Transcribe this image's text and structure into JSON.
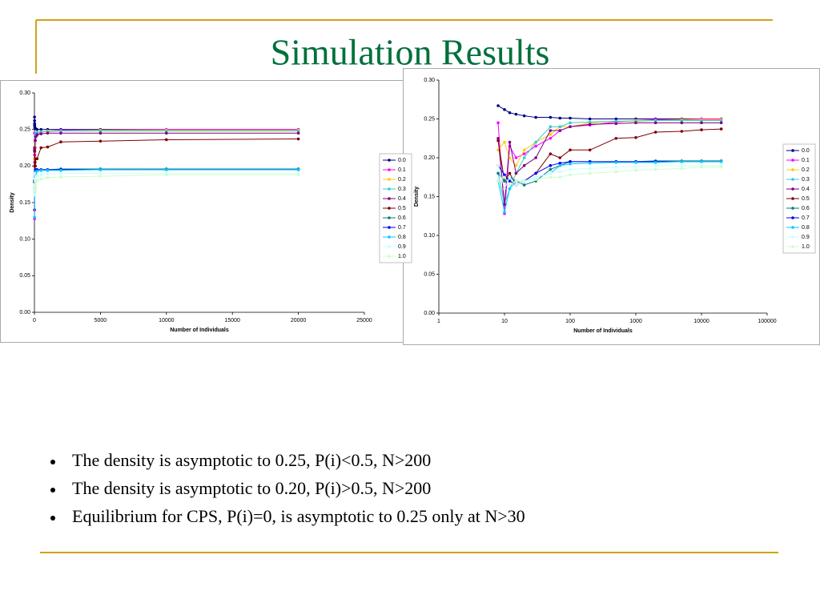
{
  "title": "Simulation Results",
  "bullets": [
    "The density is asymptotic to 0.25, P(i)<0.5, N>200",
    "The density is asymptotic to 0.20, P(i)>0.5, N>200",
    "Equilibrium for CPS, P(i)=0, is asymptotic to 0.25 only at N>30"
  ],
  "chart_data": [
    {
      "type": "line",
      "x_label": "Number of Individuals",
      "y_label": "Density",
      "xlog": false,
      "x": [
        8,
        10,
        12,
        15,
        20,
        30,
        50,
        70,
        100,
        200,
        500,
        1000,
        2000,
        5000,
        10000,
        20000
      ],
      "xlim": [
        0,
        25000
      ],
      "xticks": [
        0,
        5000,
        10000,
        15000,
        20000,
        25000
      ],
      "ylim": [
        0,
        0.3
      ],
      "yticks": [
        {
          "value": 0,
          "label": "0.00"
        },
        0.05,
        {
          "value": 0.1,
          "label": "0.10"
        },
        0.15,
        {
          "value": 0.2,
          "label": "0.20"
        },
        0.25,
        {
          "value": 0.3,
          "label": "0.30"
        }
      ],
      "series": [
        {
          "name": "0.0",
          "color": "#000080",
          "values": [
            0.267,
            0.262,
            0.258,
            0.256,
            0.254,
            0.252,
            0.252,
            0.251,
            0.251,
            0.25,
            0.25,
            0.25,
            0.25,
            0.25,
            0.25,
            0.25
          ]
        },
        {
          "name": "0.1",
          "color": "#ff00ff",
          "values": [
            0.245,
            0.128,
            0.215,
            0.2,
            0.205,
            0.215,
            0.225,
            0.235,
            0.24,
            0.242,
            0.246,
            0.248,
            0.249,
            0.249,
            0.25,
            0.25
          ]
        },
        {
          "name": "0.2",
          "color": "#ffcc00",
          "values": [
            0.21,
            0.22,
            0.2,
            0.19,
            0.21,
            0.22,
            0.23,
            0.24,
            0.24,
            0.245,
            0.247,
            0.248,
            0.248,
            0.249,
            0.249,
            0.249
          ]
        },
        {
          "name": "0.3",
          "color": "#33cccc",
          "values": [
            0.18,
            0.14,
            0.16,
            0.18,
            0.2,
            0.22,
            0.24,
            0.24,
            0.245,
            0.246,
            0.247,
            0.247,
            0.248,
            0.248,
            0.248,
            0.248
          ]
        },
        {
          "name": "0.4",
          "color": "#800080",
          "values": [
            0.225,
            0.14,
            0.22,
            0.18,
            0.19,
            0.2,
            0.235,
            0.235,
            0.24,
            0.243,
            0.244,
            0.245,
            0.245,
            0.245,
            0.245,
            0.245
          ]
        },
        {
          "name": "0.5",
          "color": "#800000",
          "values": [
            0.222,
            0.17,
            0.18,
            0.165,
            0.17,
            0.18,
            0.205,
            0.2,
            0.21,
            0.21,
            0.225,
            0.226,
            0.233,
            0.234,
            0.236,
            0.237
          ]
        },
        {
          "name": "0.6",
          "color": "#008080",
          "values": [
            0.18,
            0.17,
            0.175,
            0.17,
            0.165,
            0.17,
            0.185,
            0.19,
            0.195,
            0.195,
            0.195,
            0.195,
            0.196,
            0.196,
            0.196,
            0.196
          ]
        },
        {
          "name": "0.7",
          "color": "#0000ff",
          "values": [
            0.19,
            0.178,
            0.17,
            0.165,
            0.17,
            0.18,
            0.19,
            0.193,
            0.195,
            0.195,
            0.195,
            0.195,
            0.195,
            0.195,
            0.195,
            0.195
          ]
        },
        {
          "name": "0.8",
          "color": "#00ccff",
          "values": [
            0.17,
            0.13,
            0.16,
            0.17,
            0.17,
            0.175,
            0.18,
            0.19,
            0.192,
            0.193,
            0.194,
            0.194,
            0.194,
            0.195,
            0.195,
            0.195
          ]
        },
        {
          "name": "0.9",
          "color": "#ccffff",
          "values": [
            0.19,
            0.16,
            0.175,
            0.165,
            0.17,
            0.175,
            0.18,
            0.182,
            0.185,
            0.186,
            0.188,
            0.189,
            0.19,
            0.19,
            0.19,
            0.19
          ]
        },
        {
          "name": "1.0",
          "color": "#ccffcc",
          "values": [
            0.17,
            0.175,
            0.165,
            0.17,
            0.17,
            0.172,
            0.175,
            0.175,
            0.178,
            0.18,
            0.182,
            0.184,
            0.185,
            0.186,
            0.188,
            0.188
          ]
        }
      ]
    },
    {
      "type": "line",
      "x_label": "Number of Individuals",
      "y_label": "Density",
      "xlog": true,
      "x": [
        8,
        10,
        12,
        15,
        20,
        30,
        50,
        70,
        100,
        200,
        500,
        1000,
        2000,
        5000,
        10000,
        20000
      ],
      "xlim": [
        1,
        100000
      ],
      "xticks": [
        1,
        10,
        100,
        1000,
        10000,
        100000
      ],
      "ylim": [
        0,
        0.3
      ],
      "yticks": [
        {
          "value": 0,
          "label": "0.00"
        },
        0.05,
        {
          "value": 0.1,
          "label": "0.10"
        },
        0.15,
        {
          "value": 0.2,
          "label": "0.20"
        },
        0.25,
        {
          "value": 0.3,
          "label": "0.30"
        }
      ],
      "series": [
        {
          "name": "0.0",
          "color": "#000080",
          "values": [
            0.267,
            0.262,
            0.258,
            0.256,
            0.254,
            0.252,
            0.252,
            0.251,
            0.251,
            0.25,
            0.25,
            0.25,
            0.25,
            0.25,
            0.25,
            0.25
          ]
        },
        {
          "name": "0.1",
          "color": "#ff00ff",
          "values": [
            0.245,
            0.128,
            0.215,
            0.2,
            0.205,
            0.215,
            0.225,
            0.235,
            0.24,
            0.242,
            0.246,
            0.248,
            0.249,
            0.249,
            0.25,
            0.25
          ]
        },
        {
          "name": "0.2",
          "color": "#ffcc00",
          "values": [
            0.21,
            0.22,
            0.2,
            0.19,
            0.21,
            0.22,
            0.23,
            0.24,
            0.24,
            0.245,
            0.247,
            0.248,
            0.248,
            0.249,
            0.249,
            0.249
          ]
        },
        {
          "name": "0.3",
          "color": "#33cccc",
          "values": [
            0.18,
            0.14,
            0.16,
            0.18,
            0.2,
            0.22,
            0.24,
            0.24,
            0.245,
            0.246,
            0.247,
            0.247,
            0.248,
            0.248,
            0.248,
            0.248
          ]
        },
        {
          "name": "0.4",
          "color": "#800080",
          "values": [
            0.225,
            0.14,
            0.22,
            0.18,
            0.19,
            0.2,
            0.235,
            0.235,
            0.24,
            0.243,
            0.244,
            0.245,
            0.245,
            0.245,
            0.245,
            0.245
          ]
        },
        {
          "name": "0.5",
          "color": "#800000",
          "values": [
            0.222,
            0.17,
            0.18,
            0.165,
            0.17,
            0.18,
            0.205,
            0.2,
            0.21,
            0.21,
            0.225,
            0.226,
            0.233,
            0.234,
            0.236,
            0.237
          ]
        },
        {
          "name": "0.6",
          "color": "#008080",
          "values": [
            0.18,
            0.17,
            0.175,
            0.17,
            0.165,
            0.17,
            0.185,
            0.19,
            0.195,
            0.195,
            0.195,
            0.195,
            0.196,
            0.196,
            0.196,
            0.196
          ]
        },
        {
          "name": "0.7",
          "color": "#0000ff",
          "values": [
            0.19,
            0.178,
            0.17,
            0.165,
            0.17,
            0.18,
            0.19,
            0.193,
            0.195,
            0.195,
            0.195,
            0.195,
            0.195,
            0.195,
            0.195,
            0.195
          ]
        },
        {
          "name": "0.8",
          "color": "#00ccff",
          "values": [
            0.17,
            0.13,
            0.16,
            0.17,
            0.17,
            0.175,
            0.18,
            0.19,
            0.192,
            0.193,
            0.194,
            0.194,
            0.194,
            0.195,
            0.195,
            0.195
          ]
        },
        {
          "name": "0.9",
          "color": "#ccffff",
          "values": [
            0.19,
            0.16,
            0.175,
            0.165,
            0.17,
            0.175,
            0.18,
            0.182,
            0.185,
            0.186,
            0.188,
            0.189,
            0.19,
            0.19,
            0.19,
            0.19
          ]
        },
        {
          "name": "1.0",
          "color": "#ccffcc",
          "values": [
            0.17,
            0.175,
            0.165,
            0.17,
            0.17,
            0.172,
            0.175,
            0.175,
            0.178,
            0.18,
            0.182,
            0.184,
            0.185,
            0.186,
            0.188,
            0.188
          ]
        }
      ]
    }
  ]
}
